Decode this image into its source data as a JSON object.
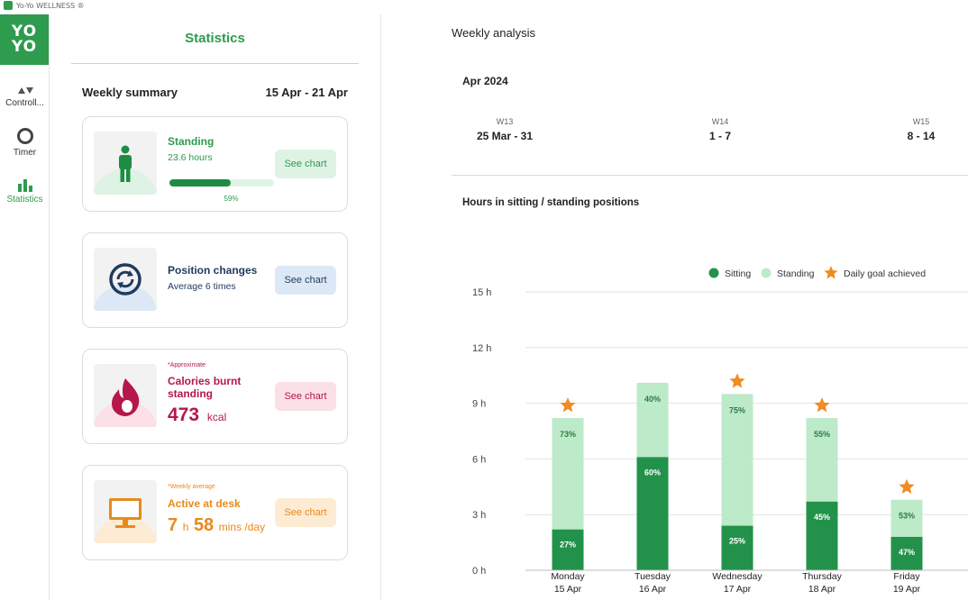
{
  "window": {
    "title": "Yo-Yo WELLNESS ®"
  },
  "logo": {
    "line1": "YO",
    "line2": "YO",
    "mark": "®"
  },
  "nav": {
    "items": [
      {
        "label": "Controll...",
        "icon": "up-down-arrows-icon"
      },
      {
        "label": "Timer",
        "icon": "ring-icon"
      },
      {
        "label": "Statistics",
        "icon": "bar-chart-icon",
        "active": true
      }
    ]
  },
  "stats": {
    "title": "Statistics",
    "summary_label": "Weekly summary",
    "summary_range": "15 Apr - 21 Apr",
    "cards": [
      {
        "title": "Standing",
        "subtitle": "23.6 hours",
        "progress": 0.59,
        "progress_label": "59%",
        "button": "See chart",
        "icon": "standing-person-icon",
        "color": "#2e9b4f"
      },
      {
        "title": "Position changes",
        "subtitle": "Average 6 times",
        "button": "See chart",
        "icon": "position-change-icon",
        "color": "#1f3a5c"
      },
      {
        "note": "*Approximate",
        "title": "Calories burnt standing",
        "value": "473",
        "unit": "kcal",
        "button": "See chart",
        "icon": "flame-icon",
        "color": "#b5174b"
      },
      {
        "note": "*Weekly average",
        "title": "Active at desk",
        "hours": "7",
        "hours_unit": "h",
        "minutes": "58",
        "minutes_unit": "mins /day",
        "button": "See chart",
        "icon": "monitor-icon",
        "color": "#e88a1a"
      }
    ]
  },
  "analysis": {
    "title": "Weekly analysis",
    "month": "Apr 2024",
    "weeks": [
      {
        "label": "W13",
        "range": "25 Mar - 31"
      },
      {
        "label": "W14",
        "range": "1 - 7"
      },
      {
        "label": "W15",
        "range": "8 - 14"
      }
    ],
    "chart_title": "Hours in sitting / standing positions"
  },
  "chart_data": {
    "type": "bar",
    "stacked": true,
    "title": "Hours in sitting / standing positions",
    "categories": [
      "Monday\n15 Apr",
      "Tuesday\n16 Apr",
      "Wednesday\n17 Apr",
      "Thursday\n18 Apr",
      "Friday\n19 Apr"
    ],
    "category_days": [
      "Monday",
      "Tuesday",
      "Wednesday",
      "Thursday",
      "Friday"
    ],
    "category_dates": [
      "15 Apr",
      "16 Apr",
      "17 Apr",
      "18 Apr",
      "19 Apr"
    ],
    "totals": [
      8.2,
      10.1,
      9.5,
      8.2,
      3.8
    ],
    "series": [
      {
        "name": "Sitting",
        "color": "#22924a",
        "percent_labels": [
          "27%",
          "60%",
          "25%",
          "45%",
          "47%"
        ],
        "values": [
          2.2,
          6.1,
          2.4,
          3.7,
          1.8
        ]
      },
      {
        "name": "Standing",
        "color": "#bdeac8",
        "percent_labels": [
          "73%",
          "40%",
          "75%",
          "55%",
          "53%"
        ],
        "values": [
          6.0,
          4.0,
          7.1,
          4.5,
          2.0
        ]
      }
    ],
    "goal_achieved": [
      true,
      false,
      true,
      true,
      true
    ],
    "goal_legend": "Daily goal achieved",
    "goal_color": "#f08c24",
    "yticks": [
      "0 h",
      "3 h",
      "6 h",
      "9 h",
      "12 h",
      "15 h"
    ],
    "ytick_values": [
      0,
      3,
      6,
      9,
      12,
      15
    ],
    "ylim": [
      0,
      15
    ],
    "grid": true,
    "legend_position": "top-right"
  }
}
